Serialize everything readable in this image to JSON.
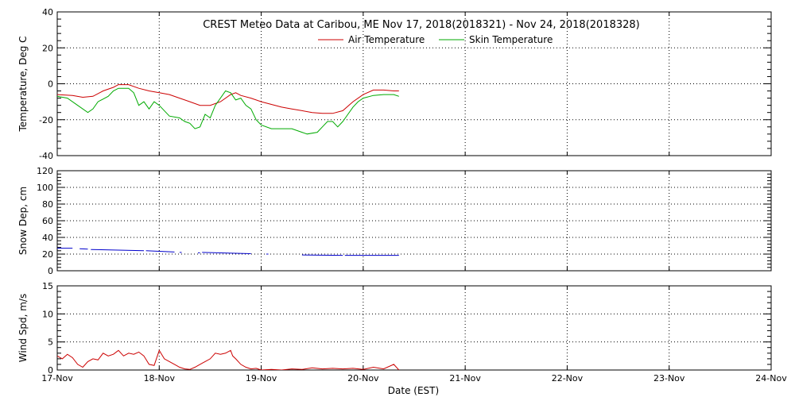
{
  "chart_data": {
    "type": "line",
    "title": "CREST Meteo Data at Caribou, ME   Nov 17, 2018(2018321) - Nov 24, 2018(2018328)",
    "xlabel": "Date (EST)",
    "x_range_days": [
      0,
      7
    ],
    "x_ticks": [
      "17-Nov",
      "18-Nov",
      "19-Nov",
      "20-Nov",
      "21-Nov",
      "22-Nov",
      "23-Nov",
      "24-Nov"
    ],
    "grid": true,
    "legend_position": "top-center",
    "panels": [
      {
        "id": "temperature",
        "ylabel": "Temperature, Deg C",
        "ylim": [
          -40,
          40
        ],
        "y_ticks": [
          -40,
          -20,
          0,
          20,
          40
        ],
        "series": [
          {
            "name": "Air Temperature",
            "color": "#cc0000",
            "points": [
              [
                0,
                -6
              ],
              [
                0.15,
                -6.5
              ],
              [
                0.25,
                -7.5
              ],
              [
                0.35,
                -7
              ],
              [
                0.45,
                -4
              ],
              [
                0.55,
                -2
              ],
              [
                0.6,
                -0.5
              ],
              [
                0.7,
                -0.5
              ],
              [
                0.8,
                -2.5
              ],
              [
                0.9,
                -4
              ],
              [
                1.0,
                -5
              ],
              [
                1.1,
                -6
              ],
              [
                1.2,
                -8
              ],
              [
                1.3,
                -10
              ],
              [
                1.4,
                -12
              ],
              [
                1.5,
                -12
              ],
              [
                1.6,
                -10
              ],
              [
                1.7,
                -6
              ],
              [
                1.75,
                -5
              ],
              [
                1.8,
                -6.5
              ],
              [
                1.9,
                -8
              ],
              [
                2.0,
                -10
              ],
              [
                2.1,
                -11.5
              ],
              [
                2.2,
                -13
              ],
              [
                2.3,
                -14
              ],
              [
                2.4,
                -15
              ],
              [
                2.5,
                -16
              ],
              [
                2.6,
                -16.5
              ],
              [
                2.7,
                -16.5
              ],
              [
                2.8,
                -15
              ],
              [
                2.9,
                -10
              ],
              [
                3.0,
                -6
              ],
              [
                3.1,
                -3.5
              ],
              [
                3.2,
                -3.5
              ],
              [
                3.3,
                -4
              ],
              [
                3.35,
                -4
              ]
            ]
          },
          {
            "name": "Skin Temperature",
            "color": "#00aa00",
            "points": [
              [
                0,
                -7
              ],
              [
                0.1,
                -8
              ],
              [
                0.2,
                -12
              ],
              [
                0.3,
                -16
              ],
              [
                0.35,
                -14
              ],
              [
                0.4,
                -10
              ],
              [
                0.5,
                -7
              ],
              [
                0.55,
                -4
              ],
              [
                0.6,
                -2.5
              ],
              [
                0.7,
                -2.5
              ],
              [
                0.75,
                -5
              ],
              [
                0.8,
                -12
              ],
              [
                0.85,
                -10
              ],
              [
                0.9,
                -14
              ],
              [
                0.95,
                -10
              ],
              [
                1.0,
                -12
              ],
              [
                1.1,
                -18
              ],
              [
                1.2,
                -19
              ],
              [
                1.25,
                -21
              ],
              [
                1.3,
                -22
              ],
              [
                1.35,
                -25
              ],
              [
                1.4,
                -24
              ],
              [
                1.45,
                -17
              ],
              [
                1.5,
                -19
              ],
              [
                1.55,
                -12
              ],
              [
                1.6,
                -8
              ],
              [
                1.65,
                -4
              ],
              [
                1.7,
                -5
              ],
              [
                1.75,
                -9
              ],
              [
                1.8,
                -8
              ],
              [
                1.85,
                -12
              ],
              [
                1.9,
                -14
              ],
              [
                1.95,
                -20
              ],
              [
                2.0,
                -23
              ],
              [
                2.1,
                -25
              ],
              [
                2.2,
                -25
              ],
              [
                2.3,
                -25
              ],
              [
                2.4,
                -27
              ],
              [
                2.45,
                -28
              ],
              [
                2.55,
                -27
              ],
              [
                2.6,
                -24
              ],
              [
                2.65,
                -21
              ],
              [
                2.7,
                -21
              ],
              [
                2.75,
                -24
              ],
              [
                2.8,
                -21
              ],
              [
                2.85,
                -17
              ],
              [
                2.9,
                -13
              ],
              [
                2.95,
                -10
              ],
              [
                3.0,
                -8
              ],
              [
                3.1,
                -6.5
              ],
              [
                3.2,
                -6
              ],
              [
                3.3,
                -6
              ],
              [
                3.35,
                -7
              ]
            ]
          }
        ]
      },
      {
        "id": "snow-depth",
        "ylabel": "Snow Dep, cm",
        "ylim": [
          0,
          120
        ],
        "y_ticks": [
          0,
          20,
          40,
          60,
          80,
          100,
          120
        ],
        "series": [
          {
            "color": "#0000cc",
            "segments": [
              [
                [
                  0,
                  27
                ],
                [
                  0.15,
                  27
                ]
              ],
              [
                [
                  0.22,
                  26.5
                ],
                [
                  0.3,
                  26
                ]
              ],
              [
                [
                  0.33,
                  25.5
                ],
                [
                  0.85,
                  24
                ]
              ],
              [
                [
                  0.87,
                  24
                ],
                [
                  1.15,
                  22.5
                ]
              ],
              [
                [
                  1.2,
                  22
                ],
                [
                  1.22,
                  22
                ]
              ],
              [
                [
                  1.38,
                  21.5
                ],
                [
                  1.4,
                  21.5
                ]
              ],
              [
                [
                  1.42,
                  22
                ],
                [
                  1.9,
                  20.5
                ]
              ],
              [
                [
                  2.05,
                  20
                ],
                [
                  2.07,
                  20
                ]
              ],
              [
                [
                  2.4,
                  19
                ],
                [
                  2.8,
                  18.5
                ]
              ],
              [
                [
                  2.82,
                  18.5
                ],
                [
                  3.35,
                  18.5
                ]
              ]
            ]
          }
        ]
      },
      {
        "id": "wind-speed",
        "ylabel": "Wind Spd, m/s",
        "ylim": [
          0,
          15
        ],
        "y_ticks": [
          0,
          5,
          10,
          15
        ],
        "series": [
          {
            "color": "#cc0000",
            "points": [
              [
                0,
                2.5
              ],
              [
                0.05,
                2
              ],
              [
                0.1,
                2.8
              ],
              [
                0.15,
                2.2
              ],
              [
                0.2,
                1
              ],
              [
                0.25,
                0.5
              ],
              [
                0.3,
                1.5
              ],
              [
                0.35,
                2
              ],
              [
                0.4,
                1.8
              ],
              [
                0.45,
                3
              ],
              [
                0.5,
                2.5
              ],
              [
                0.55,
                2.8
              ],
              [
                0.6,
                3.5
              ],
              [
                0.65,
                2.5
              ],
              [
                0.7,
                3
              ],
              [
                0.75,
                2.8
              ],
              [
                0.8,
                3.2
              ],
              [
                0.85,
                2.5
              ],
              [
                0.9,
                1
              ],
              [
                0.95,
                0.8
              ],
              [
                1.0,
                3.5
              ],
              [
                1.05,
                2
              ],
              [
                1.1,
                1.5
              ],
              [
                1.15,
                1
              ],
              [
                1.2,
                0.5
              ],
              [
                1.25,
                0.2
              ],
              [
                1.3,
                0.1
              ],
              [
                1.35,
                0.5
              ],
              [
                1.4,
                1
              ],
              [
                1.45,
                1.5
              ],
              [
                1.5,
                2
              ],
              [
                1.55,
                3
              ],
              [
                1.6,
                2.8
              ],
              [
                1.65,
                3
              ],
              [
                1.7,
                3.5
              ],
              [
                1.72,
                2.5
              ],
              [
                1.75,
                2
              ],
              [
                1.8,
                1
              ],
              [
                1.85,
                0.5
              ],
              [
                1.9,
                0.2
              ],
              [
                1.95,
                0.3
              ],
              [
                2.0,
                0
              ],
              [
                2.1,
                0.1
              ],
              [
                2.2,
                0
              ],
              [
                2.3,
                0.2
              ],
              [
                2.4,
                0.1
              ],
              [
                2.5,
                0.4
              ],
              [
                2.6,
                0.2
              ],
              [
                2.7,
                0.3
              ],
              [
                2.8,
                0.2
              ],
              [
                2.9,
                0.3
              ],
              [
                3.0,
                0.1
              ],
              [
                3.1,
                0.5
              ],
              [
                3.2,
                0.2
              ],
              [
                3.3,
                1
              ],
              [
                3.35,
                0
              ]
            ]
          }
        ]
      }
    ]
  }
}
